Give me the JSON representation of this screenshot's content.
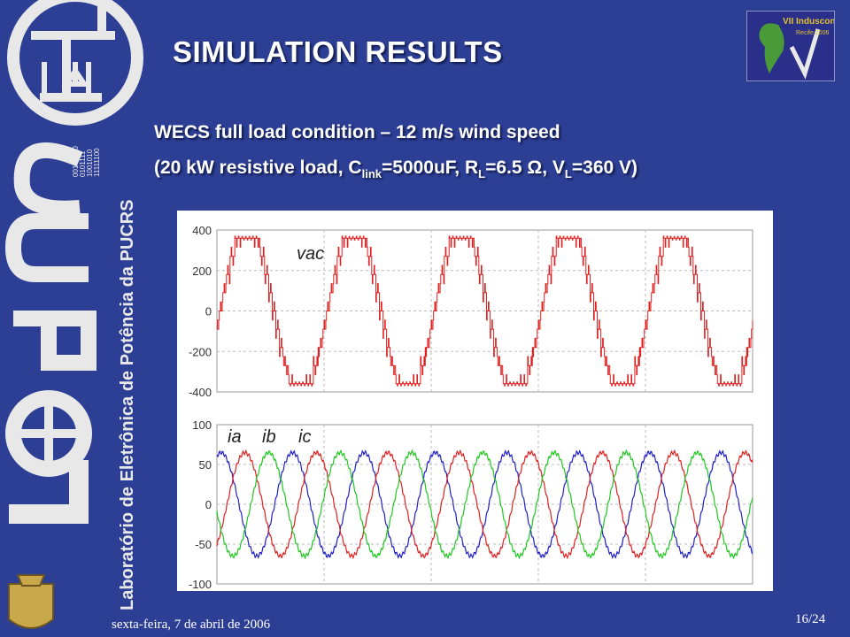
{
  "slide": {
    "title": "SIMULATION RESULTS",
    "subtitle_line1": "WECS full load condition – 12 m/s wind speed",
    "subtitle_line2": {
      "prefix": "(20 kW resistive load, C",
      "sub1": "link",
      "mid1": "=5000uF, R",
      "sub2": "L",
      "mid2": "=6.5 Ω, V",
      "sub3": "L",
      "suffix": "=360 V)"
    },
    "footer_date": "sexta-feira, 7 de abril de 2006",
    "page_number": "16/24"
  },
  "sidebar": {
    "logo_text": "LEPUC",
    "vertical_text": "Laboratório de Eletrônica de Potência da PUCRS",
    "binary_text": [
      "00101100",
      "0101111",
      "1001010",
      "11111100"
    ]
  },
  "conference_logo": {
    "line1": "VII Induscon",
    "line2": "Recife 2006"
  },
  "colors": {
    "background": "#2d3f95",
    "ia": "#2020c8",
    "ib": "#e02020",
    "ic": "#20c820",
    "vac": "#e02020"
  },
  "chart_data": [
    {
      "type": "line",
      "series": [
        {
          "name": "v_ac",
          "amplitude": 370,
          "cycles": 5,
          "pwm_steps": true
        }
      ],
      "ylim": [
        -400,
        400
      ],
      "yticks": [
        "400",
        "200",
        "0",
        "-200",
        "-400"
      ],
      "grid": true,
      "label_vac": "vac"
    },
    {
      "type": "line",
      "series": [
        {
          "name": "i_a",
          "amplitude": 65,
          "phase_deg": 0
        },
        {
          "name": "i_b",
          "amplitude": 65,
          "phase_deg": -120
        },
        {
          "name": "i_c",
          "amplitude": 65,
          "phase_deg": 120
        }
      ],
      "cycles": 7.5,
      "ylim": [
        -100,
        100
      ],
      "yticks": [
        "100",
        "50",
        "0",
        "-50",
        "-100"
      ],
      "grid": true,
      "labels": [
        "ia",
        "ib",
        "ic"
      ]
    }
  ]
}
